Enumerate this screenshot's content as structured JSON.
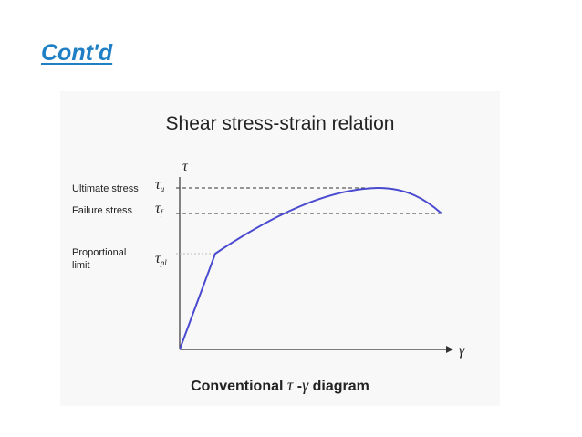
{
  "slide": {
    "title": "Cont'd"
  },
  "diagram": {
    "title": "Shear stress-strain relation",
    "y_axis_symbol": "τ",
    "x_axis_symbol": "γ",
    "levels": [
      {
        "label": "Ultimate stress",
        "symbol": "τ",
        "subscript": "u"
      },
      {
        "label": "Failure stress",
        "symbol": "τ",
        "subscript": "f"
      },
      {
        "label_lines": [
          "Proportional",
          "limit"
        ],
        "symbol": "τ",
        "subscript": "pl"
      }
    ],
    "caption": {
      "prefix": "Conventional ",
      "tau": "τ",
      "dash": " -",
      "gamma": "γ",
      "suffix": " diagram"
    },
    "colors": {
      "curve": "#4a4ad0",
      "axes": "#333333",
      "title": "#1f7fc4"
    }
  }
}
